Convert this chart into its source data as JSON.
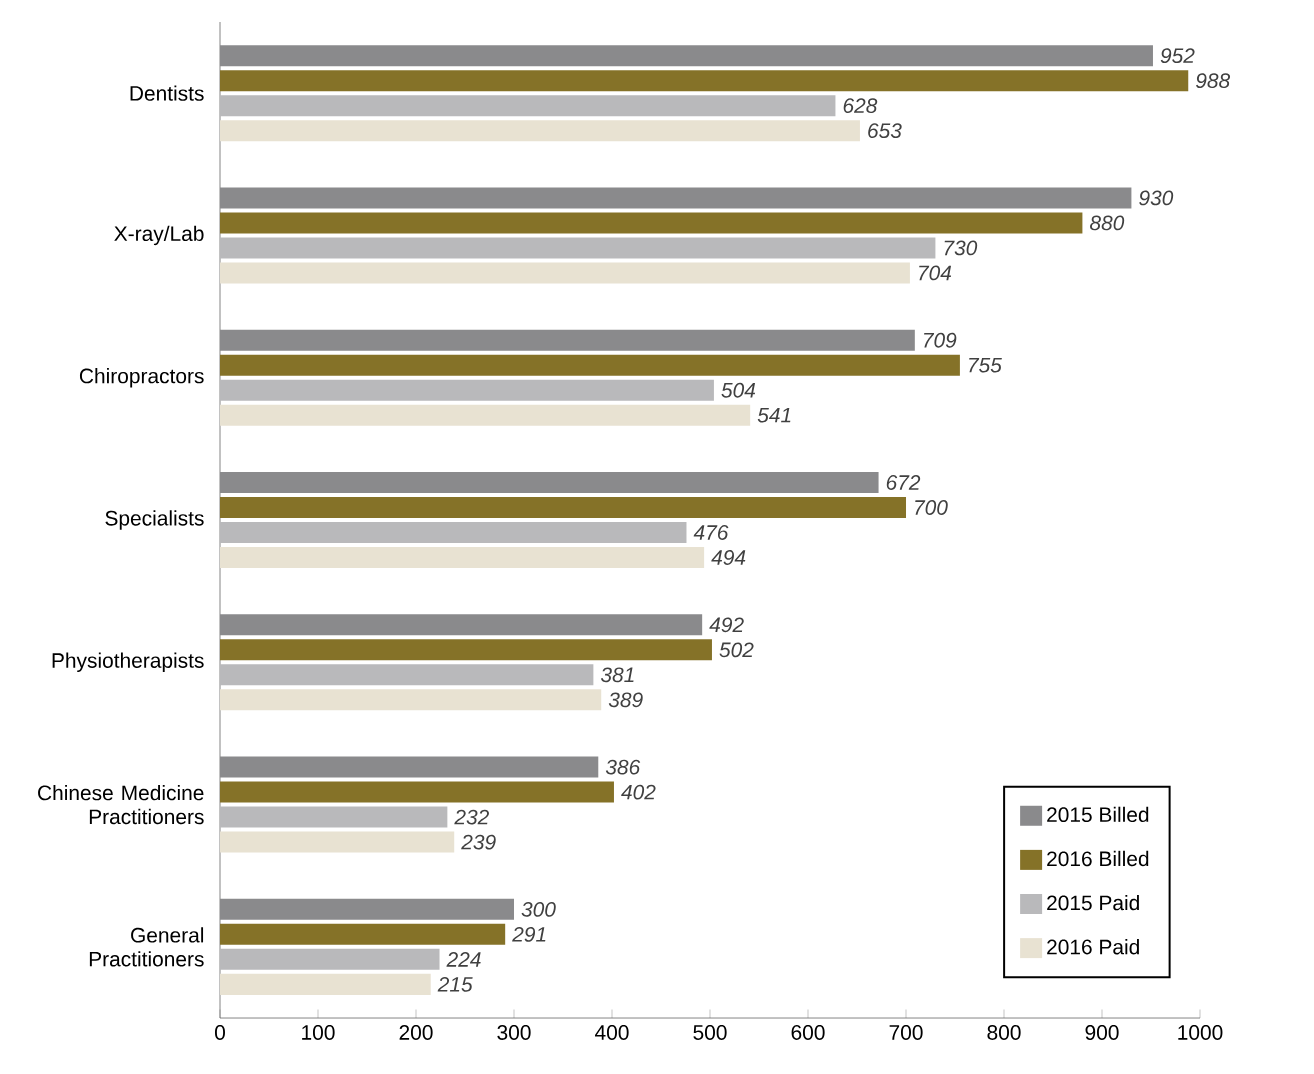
{
  "chart_data": {
    "type": "bar",
    "orientation": "horizontal",
    "categories": [
      "Dentists",
      "X-ray/Lab",
      "Chiropractors",
      "Specialists",
      "Physiotherapists",
      "Chinese Medicine Practitioners",
      "General Practitioners"
    ],
    "series": [
      {
        "name": "2015 Billed",
        "color": "#8a8a8c",
        "values": [
          952,
          930,
          709,
          672,
          492,
          386,
          300
        ]
      },
      {
        "name": "2016 Billed",
        "color": "#857228",
        "values": [
          988,
          880,
          755,
          700,
          502,
          402,
          291
        ]
      },
      {
        "name": "2015 Paid",
        "color": "#b9b9bb",
        "values": [
          628,
          730,
          504,
          476,
          381,
          232,
          224
        ]
      },
      {
        "name": "2016 Paid",
        "color": "#e8e2d2",
        "values": [
          653,
          704,
          541,
          494,
          389,
          239,
          215
        ]
      }
    ],
    "xlim": [
      0,
      1000
    ],
    "xticks": [
      0,
      100,
      200,
      300,
      400,
      500,
      600,
      700,
      800,
      900,
      1000
    ],
    "data_labels": true,
    "legend": "bottom right",
    "grid": false
  }
}
